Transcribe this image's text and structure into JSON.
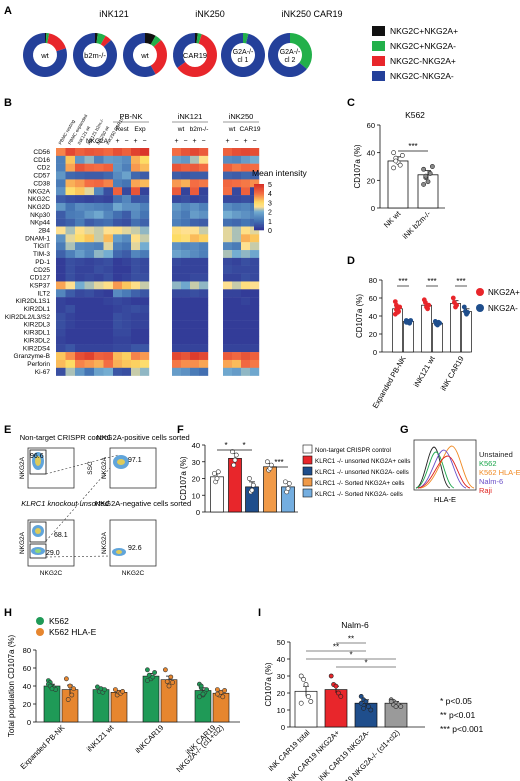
{
  "panels": [
    "A",
    "B",
    "C",
    "D",
    "E",
    "F",
    "G",
    "H",
    "I"
  ],
  "colors": {
    "nkg2c_pos_nkg2a_pos": "#111111",
    "nkg2c_pos_nkg2a_neg": "#22b04a",
    "nkg2c_neg_nkg2a_pos": "#e8262b",
    "nkg2c_neg_nkg2a_neg": "#24409a",
    "d_nkg2a_pos": "#e8262b",
    "d_nkg2a_neg": "#1f4e8c",
    "h_k562": "#1f9a57",
    "h_k562_hlae": "#e6862f"
  },
  "panel_a": {
    "group_labels": [
      "iNK121",
      "iNK250",
      "iNK250 CAR19"
    ],
    "legend": [
      "NKG2C+NKG2A+",
      "NKG2C+NKG2A-",
      "NKG2C-NKG2A+",
      "NKG2C-NKG2A-"
    ]
  },
  "chart_data": [
    {
      "panel": "A",
      "type": "pie",
      "series_labels": [
        "NKG2C+NKG2A+",
        "NKG2C+NKG2A-",
        "NKG2C-NKG2A+",
        "NKG2C-NKG2A-"
      ],
      "donuts": [
        {
          "label": "wt",
          "values": [
            1,
            2,
            17,
            80
          ]
        },
        {
          "label": "b2m-/-",
          "values": [
            2,
            6,
            5,
            87
          ]
        },
        {
          "label": "wt",
          "values": [
            8,
            5,
            29,
            58
          ]
        },
        {
          "label": "CAR19",
          "values": [
            2,
            3,
            60,
            35
          ]
        },
        {
          "label": "G2A-/- cl 1",
          "values": [
            0,
            4,
            0,
            96
          ]
        },
        {
          "label": "G2A-/- cl 2",
          "values": [
            0,
            36,
            0,
            64
          ]
        }
      ]
    },
    {
      "panel": "B",
      "type": "heatmap",
      "title": "",
      "colorbar_title": "Mean intensity",
      "colorbar_ticks": [
        5,
        4,
        3,
        2,
        1,
        0
      ],
      "rows": [
        "CD56",
        "CD16",
        "CD2",
        "CD57",
        "CD38",
        "NKG2A",
        "NKG2C",
        "NKG2D",
        "NKp30",
        "NKp44",
        "2B4",
        "DNAM-1",
        "TIGIT",
        "TIM-3",
        "PD-1",
        "CD25",
        "CD127",
        "KSP37",
        "ILT2",
        "KIR2DL1S1",
        "KIR2DL1",
        "KIR2DL2/L3/S2",
        "KIR2DL3",
        "KIR3DL1",
        "KIR3DL2",
        "KIR2DS4",
        "Granzyme-B",
        "Perforin",
        "Ki-67"
      ],
      "left_columns": [
        "PBMC resting",
        "PBMC expanded",
        "iNK121 wt",
        "iNK121 b2m-/-",
        "iNK250 wt",
        "iNK250 CAR19"
      ],
      "groups": [
        {
          "title": "PB-NK",
          "sublabels": [
            "Rest",
            "Exp"
          ]
        },
        {
          "title": "iNK121",
          "sublabels": [
            "wt",
            "b2m-/-"
          ]
        },
        {
          "title": "iNK250",
          "sublabels": [
            "wt",
            "CAR19"
          ]
        }
      ],
      "nkg2a_label": "NKG2A",
      "sign_labels": [
        "+",
        "−"
      ],
      "left_values": [
        [
          3.8,
          4.6,
          4.2,
          4.4,
          4.3,
          4.1
        ],
        [
          1.2,
          3.2,
          1.6,
          2.1,
          1.2,
          1.7
        ],
        [
          1.2,
          3.5,
          4.4,
          4.1,
          4.0,
          4.2
        ],
        [
          1.6,
          0.8,
          0.7,
          0.6,
          0.6,
          0.8
        ],
        [
          1.1,
          3.4,
          3.6,
          4.0,
          4.1,
          3.8
        ],
        [
          1.5,
          2.9,
          3.2,
          2.4,
          1.3,
          0.4
        ],
        [
          0.6,
          0.4,
          0.3,
          0.2,
          0.3,
          0.2
        ],
        [
          1.6,
          1.0,
          1.4,
          1.3,
          1.2,
          1.1
        ],
        [
          0.6,
          1.1,
          1.2,
          1.6,
          1.9,
          1.3
        ],
        [
          0.5,
          0.7,
          1.1,
          0.6,
          0.8,
          0.9
        ],
        [
          2.5,
          2.2,
          2.6,
          2.4,
          2.3,
          2.5
        ],
        [
          1.5,
          2.4,
          2.9,
          3.2,
          2.3,
          3.3
        ],
        [
          1.1,
          2.2,
          1.4,
          1.3,
          1.2,
          2.4
        ],
        [
          0.7,
          1.2,
          1.7,
          1.3,
          2.1,
          2.0
        ],
        [
          0.1,
          0.4,
          0.3,
          0.2,
          0.3,
          0.4
        ],
        [
          0.1,
          0.4,
          0.2,
          0.2,
          0.4,
          0.3
        ],
        [
          0.1,
          0.4,
          0.2,
          0.3,
          0.2,
          0.4
        ],
        [
          3.5,
          2.5,
          2.0,
          2.2,
          2.4,
          2.6
        ],
        [
          1.3,
          0.6,
          0.3,
          0.4,
          0.2,
          0.1
        ],
        [
          0.2,
          0.1,
          0.1,
          0.1,
          0.1,
          0.2
        ],
        [
          0.2,
          0.4,
          0.1,
          0.1,
          0.1,
          0.1
        ],
        [
          0.4,
          0.2,
          0.1,
          0.1,
          0.1,
          0.1
        ],
        [
          0.4,
          0.2,
          0.1,
          0.1,
          0.1,
          0.1
        ],
        [
          0.3,
          0.1,
          0.1,
          0.1,
          0.1,
          0.1
        ],
        [
          0.2,
          0.1,
          0.1,
          0.1,
          0.1,
          0.1
        ],
        [
          0.3,
          0.5,
          0.2,
          0.2,
          0.2,
          0.2
        ],
        [
          3.2,
          3.7,
          4.5,
          4.7,
          4.2,
          4.3
        ],
        [
          3.3,
          3.0,
          3.8,
          3.6,
          3.4,
          4.0
        ],
        [
          0.4,
          2.2,
          1.6,
          1.0,
          1.8,
          2.0
        ]
      ],
      "right_values": [
        [
          4.5,
          4.2,
          4.7,
          4.9,
          4.0,
          4.4,
          4.6,
          4.3,
          4.2,
          4.5,
          4.6,
          4.5
        ],
        [
          1.6,
          1.4,
          3.4,
          3.0,
          1.8,
          1.6,
          2.2,
          2.6,
          1.4,
          1.3,
          1.7,
          2.0
        ],
        [
          1.6,
          1.2,
          3.6,
          3.3,
          4.4,
          4.2,
          4.3,
          4.0,
          4.2,
          3.9,
          4.1,
          4.0
        ],
        [
          1.4,
          1.8,
          0.8,
          0.6,
          0.6,
          0.5,
          0.6,
          0.6,
          0.7,
          0.6,
          0.8,
          0.7
        ],
        [
          1.2,
          1.0,
          3.5,
          3.3,
          3.6,
          3.4,
          4.0,
          3.9,
          4.1,
          4.0,
          3.9,
          3.7
        ],
        [
          4.2,
          0.3,
          4.4,
          0.2,
          4.3,
          0.2,
          4.3,
          0.2,
          4.0,
          0.3,
          4.2,
          0.2
        ],
        [
          0.9,
          1.3,
          0.5,
          0.6,
          0.3,
          0.4,
          0.2,
          0.3,
          0.3,
          0.3,
          0.4,
          0.3
        ],
        [
          1.9,
          1.5,
          1.5,
          1.2,
          1.6,
          1.3,
          1.5,
          1.2,
          1.4,
          1.2,
          1.3,
          1.1
        ],
        [
          0.9,
          0.6,
          1.4,
          1.0,
          1.4,
          1.1,
          1.7,
          1.5,
          2.0,
          1.7,
          1.5,
          1.3
        ],
        [
          0.5,
          0.4,
          0.9,
          0.7,
          1.2,
          1.0,
          0.7,
          0.6,
          0.9,
          0.8,
          1.0,
          0.8
        ],
        [
          2.6,
          2.4,
          2.3,
          2.1,
          2.7,
          2.5,
          2.5,
          2.3,
          2.4,
          2.2,
          2.6,
          2.4
        ],
        [
          1.7,
          1.4,
          2.6,
          2.3,
          3.0,
          2.8,
          3.3,
          3.1,
          2.4,
          2.2,
          3.4,
          3.2
        ],
        [
          1.2,
          1.0,
          2.4,
          2.0,
          1.5,
          1.3,
          1.4,
          1.2,
          1.3,
          1.1,
          2.5,
          2.3
        ],
        [
          0.8,
          0.6,
          1.3,
          1.1,
          1.8,
          1.6,
          1.4,
          1.2,
          2.2,
          2.0,
          2.1,
          1.9
        ],
        [
          0.1,
          0.2,
          0.4,
          0.3,
          0.3,
          0.2,
          0.2,
          0.2,
          0.3,
          0.2,
          0.4,
          0.3
        ],
        [
          0.1,
          0.1,
          0.4,
          0.3,
          0.2,
          0.2,
          0.2,
          0.2,
          0.4,
          0.3,
          0.3,
          0.3
        ],
        [
          0.1,
          0.2,
          0.4,
          0.4,
          0.2,
          0.2,
          0.3,
          0.3,
          0.2,
          0.2,
          0.4,
          0.3
        ],
        [
          3.6,
          3.2,
          2.6,
          2.3,
          2.1,
          1.9,
          2.3,
          2.1,
          2.5,
          2.3,
          2.7,
          2.5
        ],
        [
          1.4,
          1.1,
          0.7,
          0.5,
          0.3,
          0.3,
          0.4,
          0.3,
          0.2,
          0.2,
          0.1,
          0.1
        ],
        [
          0.3,
          0.2,
          0.1,
          0.1,
          0.1,
          0.1,
          0.1,
          0.1,
          0.1,
          0.1,
          0.2,
          0.1
        ],
        [
          0.2,
          0.3,
          0.4,
          0.3,
          0.1,
          0.1,
          0.1,
          0.1,
          0.1,
          0.1,
          0.1,
          0.1
        ],
        [
          0.4,
          0.3,
          0.2,
          0.2,
          0.1,
          0.1,
          0.1,
          0.1,
          0.1,
          0.1,
          0.1,
          0.1
        ],
        [
          0.4,
          0.3,
          0.2,
          0.2,
          0.1,
          0.1,
          0.1,
          0.1,
          0.1,
          0.1,
          0.1,
          0.1
        ],
        [
          0.3,
          0.3,
          0.1,
          0.1,
          0.1,
          0.1,
          0.1,
          0.1,
          0.1,
          0.1,
          0.1,
          0.1
        ],
        [
          0.2,
          0.2,
          0.1,
          0.1,
          0.1,
          0.1,
          0.1,
          0.1,
          0.1,
          0.1,
          0.1,
          0.1
        ],
        [
          0.3,
          0.3,
          0.5,
          0.5,
          0.2,
          0.2,
          0.2,
          0.2,
          0.2,
          0.2,
          0.2,
          0.2
        ],
        [
          3.3,
          3.1,
          3.8,
          3.6,
          4.6,
          4.4,
          4.8,
          4.6,
          4.3,
          4.1,
          4.4,
          4.2
        ],
        [
          3.4,
          3.2,
          3.1,
          2.9,
          3.9,
          3.7,
          3.7,
          3.5,
          3.5,
          3.3,
          4.1,
          3.9
        ],
        [
          0.5,
          0.4,
          2.3,
          2.1,
          1.7,
          1.5,
          1.1,
          0.9,
          1.9,
          1.7,
          2.1,
          1.9
        ]
      ]
    },
    {
      "panel": "C",
      "type": "bar",
      "title": "K562",
      "ylabel": "CD107a (%)",
      "ylim": [
        0,
        60
      ],
      "yticks": [
        0,
        20,
        40,
        60
      ],
      "categories": [
        "NK wt",
        "iNK b2m-/-"
      ],
      "values": [
        34,
        24
      ],
      "errors": [
        3,
        3
      ],
      "points": [
        [
          40,
          36,
          33,
          31,
          38,
          29,
          34
        ],
        [
          28,
          22,
          19,
          25,
          30,
          17,
          23
        ]
      ],
      "significance": "***"
    },
    {
      "panel": "D",
      "type": "bar",
      "ylabel": "CD107a (%)",
      "ylim": [
        0,
        80
      ],
      "yticks": [
        0,
        20,
        40,
        60,
        80
      ],
      "categories": [
        "Expanded PB-NK",
        "iNK121 wt",
        "iNK CAR19"
      ],
      "series": [
        {
          "name": "NKG2A+",
          "values": [
            48,
            52,
            54
          ],
          "errors": [
            2,
            2,
            3
          ],
          "points": [
            [
              56,
              52,
              48,
              45,
              50,
              42,
              47,
              44
            ],
            [
              58,
              55,
              50,
              48,
              52
            ],
            [
              60,
              55,
              50,
              52
            ]
          ]
        },
        {
          "name": "NKG2A-",
          "values": [
            34,
            32,
            45
          ],
          "errors": [
            1,
            1,
            3
          ],
          "points": [
            [
              35,
              33,
              34,
              32,
              35,
              33
            ],
            [
              34,
              31,
              30,
              33,
              32
            ],
            [
              50,
              45,
              42,
              44
            ]
          ]
        }
      ],
      "significance": [
        "***",
        "***",
        "***"
      ]
    },
    {
      "panel": "F",
      "type": "bar",
      "ylabel": "CD107a (%)",
      "ylim": [
        0,
        40
      ],
      "yticks": [
        0,
        10,
        20,
        30,
        40
      ],
      "categories": [
        "Non-target CRISPR control",
        "KLRC1 -/- unsorted NKG2A+ cells",
        "KLRC1 -/- unsorted NKG2A- cells",
        "KLRC1 -/- Sorted NKG2A+ cells",
        "KLRC1 -/- Sorted NKG2A- cells"
      ],
      "values": [
        21,
        32,
        15,
        27,
        15
      ],
      "errors": [
        2,
        3,
        3,
        2,
        2
      ],
      "points": [
        [
          23,
          18,
          20,
          24
        ],
        [
          36,
          28,
          31,
          34
        ],
        [
          20,
          12,
          13,
          16
        ],
        [
          30,
          25,
          26,
          28
        ],
        [
          18,
          12,
          14,
          17
        ]
      ],
      "significance": [
        "*",
        "*",
        "***"
      ]
    },
    {
      "panel": "H",
      "type": "bar",
      "ylabel": "Total population CD107a (%)",
      "ylim": [
        0,
        80
      ],
      "yticks": [
        0,
        20,
        40,
        60,
        80
      ],
      "categories": [
        "Expanded PB-NK",
        "iNK121 wt",
        "iNKCAR19",
        "iNK CAR19 NKG2A-/- (cl1+cl2)"
      ],
      "series": [
        {
          "name": "K562",
          "values": [
            40,
            36,
            51,
            35
          ],
          "errors": [
            2,
            2,
            3,
            3
          ],
          "points": [
            [
              46,
              44,
              40,
              38,
              36,
              42,
              40,
              37
            ],
            [
              39,
              34,
              37,
              33,
              36
            ],
            [
              58,
              52,
              48,
              50,
              55,
              46
            ],
            [
              42,
              38,
              30,
              33,
              36,
              28,
              40,
              31
            ]
          ]
        },
        {
          "name": "K562 HLA-E",
          "values": [
            36,
            33,
            47,
            32
          ],
          "errors": [
            5,
            2,
            4,
            2
          ],
          "points": [
            [
              48,
              25,
              40,
              30,
              37
            ],
            [
              36,
              30,
              33,
              32,
              34
            ],
            [
              58,
              45,
              40,
              50,
              44
            ],
            [
              36,
              30,
              33,
              28,
              35,
              31
            ]
          ]
        }
      ]
    },
    {
      "panel": "I",
      "type": "bar",
      "title": "Nalm-6",
      "ylabel": "CD107a (%)",
      "ylim": [
        0,
        50
      ],
      "yticks": [
        0,
        10,
        20,
        30,
        40,
        50
      ],
      "categories": [
        "iNK CAR19 total",
        "iNK CAR19 NKG2A+",
        "iNK CAR19 NKG2A-",
        "iNK CAR19 NKG2A-/- (cl1+cl2)"
      ],
      "values": [
        21,
        22,
        14,
        14
      ],
      "errors": [
        3,
        2,
        2,
        1
      ],
      "points": [
        [
          30,
          28,
          25,
          18,
          15,
          14
        ],
        [
          30,
          25,
          24,
          20,
          18
        ],
        [
          18,
          16,
          15,
          12,
          10,
          14,
          11
        ],
        [
          16,
          15,
          14,
          13,
          12,
          15,
          13,
          12
        ]
      ],
      "significance": [
        "*",
        "**",
        "**",
        "*"
      ],
      "pvalue_legend": [
        "*   p<0.05",
        "**  p<0.01",
        "*** p<0.001"
      ]
    }
  ],
  "panel_e": {
    "top_left_title": "Non-target CRISPR control",
    "top_right_title": "NKG2A-positive cells sorted",
    "bottom_left_title": "KLRC1 knockout unsorted",
    "bottom_right_title": "NKG2A-negative cells sorted",
    "gate_values": [
      "96.6",
      "97.1",
      "68.1",
      "29.0",
      "92.6"
    ],
    "axis_nkg2a": "NKG2A",
    "axis_nkg2c": "NKG2C",
    "axis_ssc": "SSC"
  },
  "panel_g": {
    "xlabel": "HLA-E",
    "legend": [
      {
        "label": "Unstained",
        "color": "#222222"
      },
      {
        "label": "K562",
        "color": "#1aa64a"
      },
      {
        "label": "K562 HLA-E",
        "color": "#f08a24"
      },
      {
        "label": "Nalm-6",
        "color": "#6a4fc8"
      },
      {
        "label": "Raji",
        "color": "#e0201c"
      }
    ]
  }
}
